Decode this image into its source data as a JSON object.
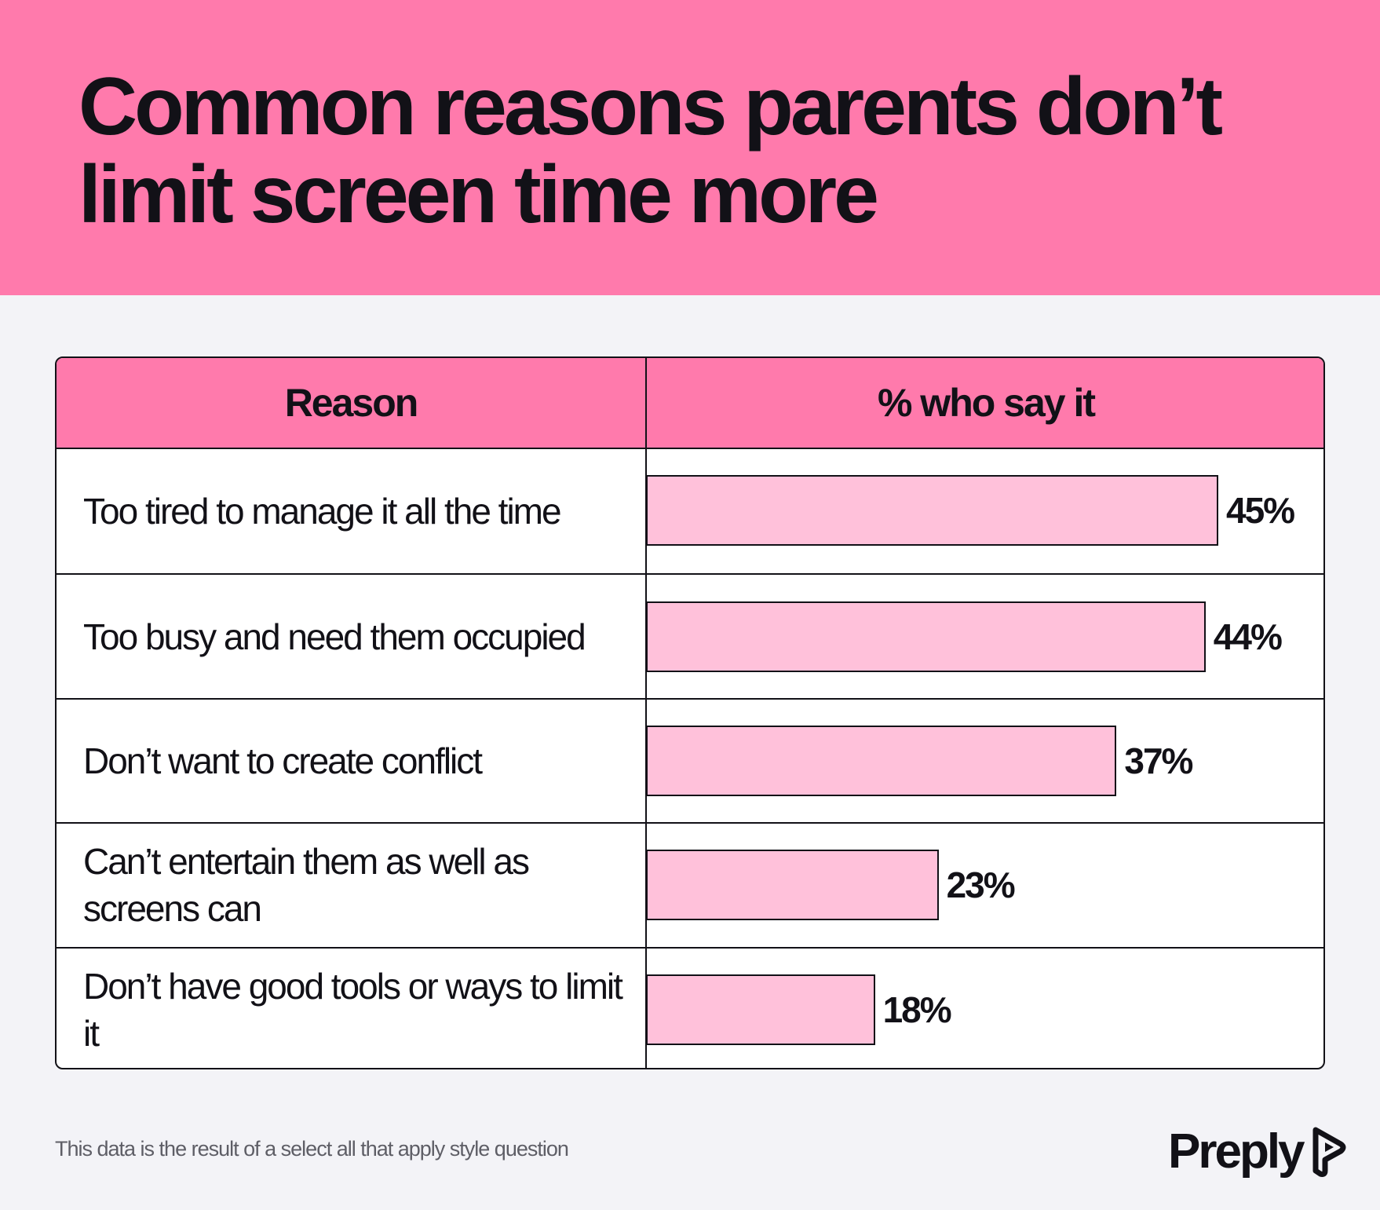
{
  "title": "Common reasons parents don’t limit screen time more",
  "table": {
    "header_reason": "Reason",
    "header_pct": "% who say it"
  },
  "chart_data": {
    "type": "bar",
    "orientation": "horizontal",
    "title": "Common reasons parents don’t limit screen time more",
    "columns": [
      "Reason",
      "% who say it"
    ],
    "categories": [
      "Too tired to manage it all the time",
      "Too busy and need them occupied",
      "Don’t want to create conflict",
      "Can’t entertain them as well as screens can",
      "Don’t have good tools or ways to limit it"
    ],
    "values": [
      45,
      44,
      37,
      23,
      18
    ],
    "value_labels": [
      "45%",
      "44%",
      "37%",
      "23%",
      "18%"
    ],
    "xlim": [
      0,
      50
    ],
    "bar_color": "#ffc1da",
    "accent_color": "#ff7aac"
  },
  "footnote": "This data is the result of a select all that apply style question",
  "brand": {
    "name": "Preply",
    "icon": "preply-logo-icon"
  }
}
